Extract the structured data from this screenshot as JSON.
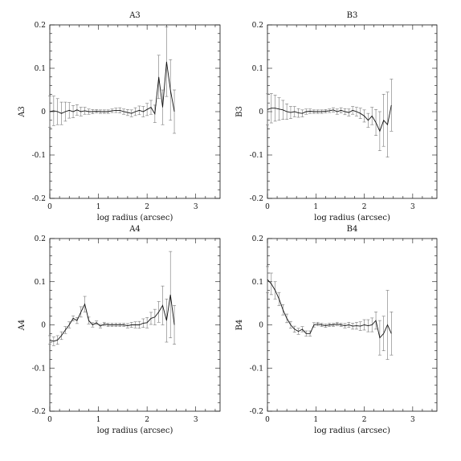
{
  "chart_data": [
    {
      "type": "line",
      "title": "A3",
      "xlabel": "log radius (arcsec)",
      "ylabel": "A3",
      "xlim": [
        0,
        3.5
      ],
      "ylim": [
        -0.2,
        0.2
      ],
      "x_ticks": [
        "0",
        "1",
        "2",
        "3"
      ],
      "y_ticks": [
        "0.2",
        "0.1",
        "0",
        "-0.1",
        "-0.2"
      ],
      "grid": false,
      "series": [
        {
          "x": [
            0.0,
            0.08,
            0.16,
            0.24,
            0.32,
            0.4,
            0.48,
            0.56,
            0.64,
            0.72,
            0.8,
            0.88,
            0.96,
            1.04,
            1.12,
            1.2,
            1.28,
            1.36,
            1.44,
            1.52,
            1.6,
            1.68,
            1.76,
            1.84,
            1.92,
            2.0,
            2.08,
            2.16,
            2.24,
            2.32,
            2.4,
            2.48,
            2.56
          ],
          "y": [
            0.0,
            0.002,
            0.0,
            -0.004,
            0.0,
            0.003,
            0.0,
            0.004,
            0.0,
            0.002,
            0.0,
            0.0,
            0.001,
            0.0,
            0.0,
            0.0,
            0.002,
            0.003,
            0.003,
            0.0,
            -0.002,
            -0.004,
            0.0,
            0.003,
            0.0,
            0.005,
            0.01,
            -0.005,
            0.08,
            0.01,
            0.115,
            0.05,
            0.0
          ],
          "err": [
            0.036,
            0.034,
            0.03,
            0.026,
            0.022,
            0.018,
            0.014,
            0.012,
            0.01,
            0.008,
            0.006,
            0.005,
            0.004,
            0.004,
            0.004,
            0.004,
            0.004,
            0.005,
            0.006,
            0.006,
            0.007,
            0.008,
            0.009,
            0.01,
            0.012,
            0.014,
            0.016,
            0.02,
            0.05,
            0.04,
            0.08,
            0.07,
            0.05
          ]
        }
      ]
    },
    {
      "type": "line",
      "title": "B3",
      "xlabel": "log radius (arcsec)",
      "ylabel": "B3",
      "xlim": [
        0,
        3.5
      ],
      "ylim": [
        -0.2,
        0.2
      ],
      "x_ticks": [
        "0",
        "1",
        "2",
        "3"
      ],
      "y_ticks": [
        "0.2",
        "0.1",
        "0",
        "-0.1",
        "-0.2"
      ],
      "grid": false,
      "series": [
        {
          "x": [
            0.0,
            0.08,
            0.16,
            0.24,
            0.32,
            0.4,
            0.48,
            0.56,
            0.64,
            0.72,
            0.8,
            0.88,
            0.96,
            1.04,
            1.12,
            1.2,
            1.28,
            1.36,
            1.44,
            1.52,
            1.6,
            1.68,
            1.76,
            1.84,
            1.92,
            2.0,
            2.08,
            2.16,
            2.24,
            2.32,
            2.4,
            2.48,
            2.56
          ],
          "y": [
            0.005,
            0.008,
            0.008,
            0.006,
            0.004,
            0.0,
            -0.002,
            0.0,
            -0.003,
            -0.004,
            0.0,
            0.001,
            0.0,
            0.0,
            0.0,
            0.001,
            0.002,
            0.004,
            0.0,
            0.003,
            0.0,
            -0.002,
            0.003,
            0.0,
            -0.004,
            -0.01,
            -0.02,
            -0.01,
            -0.025,
            -0.045,
            -0.02,
            -0.03,
            0.015
          ],
          "err": [
            0.036,
            0.034,
            0.03,
            0.026,
            0.022,
            0.018,
            0.014,
            0.012,
            0.01,
            0.008,
            0.006,
            0.005,
            0.004,
            0.004,
            0.004,
            0.004,
            0.004,
            0.005,
            0.006,
            0.006,
            0.007,
            0.008,
            0.009,
            0.01,
            0.012,
            0.014,
            0.016,
            0.02,
            0.03,
            0.045,
            0.06,
            0.075,
            0.06
          ]
        }
      ]
    },
    {
      "type": "line",
      "title": "A4",
      "xlabel": "log radius (arcsec)",
      "ylabel": "A4",
      "xlim": [
        0,
        3.5
      ],
      "ylim": [
        -0.2,
        0.2
      ],
      "x_ticks": [
        "0",
        "1",
        "2",
        "3"
      ],
      "y_ticks": [
        "0.2",
        "0.1",
        "0",
        "-0.1",
        "-0.2"
      ],
      "grid": false,
      "series": [
        {
          "x": [
            0.0,
            0.08,
            0.16,
            0.24,
            0.32,
            0.4,
            0.48,
            0.56,
            0.64,
            0.72,
            0.8,
            0.88,
            0.96,
            1.04,
            1.12,
            1.2,
            1.28,
            1.36,
            1.44,
            1.52,
            1.6,
            1.68,
            1.76,
            1.84,
            1.92,
            2.0,
            2.08,
            2.16,
            2.24,
            2.32,
            2.4,
            2.48,
            2.56
          ],
          "y": [
            -0.035,
            -0.038,
            -0.035,
            -0.025,
            -0.012,
            0.0,
            0.015,
            0.01,
            0.03,
            0.048,
            0.01,
            0.0,
            0.005,
            -0.003,
            0.002,
            0.0,
            0.0,
            0.0,
            0.0,
            0.0,
            -0.002,
            0.0,
            0.0,
            0.0,
            0.004,
            0.005,
            0.015,
            0.018,
            0.03,
            0.045,
            0.01,
            0.07,
            0.0
          ],
          "err": [
            0.01,
            0.01,
            0.01,
            0.009,
            0.008,
            0.007,
            0.006,
            0.007,
            0.012,
            0.018,
            0.008,
            0.005,
            0.004,
            0.004,
            0.004,
            0.004,
            0.004,
            0.004,
            0.004,
            0.004,
            0.005,
            0.006,
            0.007,
            0.008,
            0.01,
            0.012,
            0.014,
            0.018,
            0.024,
            0.045,
            0.05,
            0.1,
            0.045
          ]
        }
      ]
    },
    {
      "type": "line",
      "title": "B4",
      "xlabel": "log radius (arcsec)",
      "ylabel": "B4",
      "xlim": [
        0,
        3.5
      ],
      "ylim": [
        -0.2,
        0.2
      ],
      "x_ticks": [
        "0",
        "1",
        "2",
        "3"
      ],
      "y_ticks": [
        "0.2",
        "0.1",
        "0",
        "-0.1",
        "-0.2"
      ],
      "grid": false,
      "series": [
        {
          "x": [
            0.0,
            0.08,
            0.16,
            0.24,
            0.32,
            0.4,
            0.48,
            0.56,
            0.64,
            0.72,
            0.8,
            0.88,
            0.96,
            1.04,
            1.12,
            1.2,
            1.28,
            1.36,
            1.44,
            1.52,
            1.6,
            1.68,
            1.76,
            1.84,
            1.92,
            2.0,
            2.08,
            2.16,
            2.24,
            2.32,
            2.4,
            2.48,
            2.56
          ],
          "y": [
            0.105,
            0.095,
            0.08,
            0.06,
            0.035,
            0.015,
            0.0,
            -0.01,
            -0.015,
            -0.01,
            -0.02,
            -0.02,
            0.0,
            0.002,
            0.0,
            -0.002,
            0.0,
            0.0,
            0.002,
            0.0,
            -0.002,
            0.0,
            -0.003,
            -0.002,
            -0.003,
            0.0,
            -0.002,
            0.0,
            0.01,
            -0.03,
            -0.02,
            0.0,
            -0.02
          ],
          "err": [
            0.03,
            0.025,
            0.02,
            0.015,
            0.012,
            0.01,
            0.008,
            0.007,
            0.007,
            0.006,
            0.006,
            0.006,
            0.005,
            0.004,
            0.004,
            0.004,
            0.004,
            0.004,
            0.004,
            0.004,
            0.005,
            0.006,
            0.007,
            0.008,
            0.01,
            0.012,
            0.014,
            0.016,
            0.02,
            0.04,
            0.04,
            0.08,
            0.05
          ]
        }
      ]
    }
  ]
}
